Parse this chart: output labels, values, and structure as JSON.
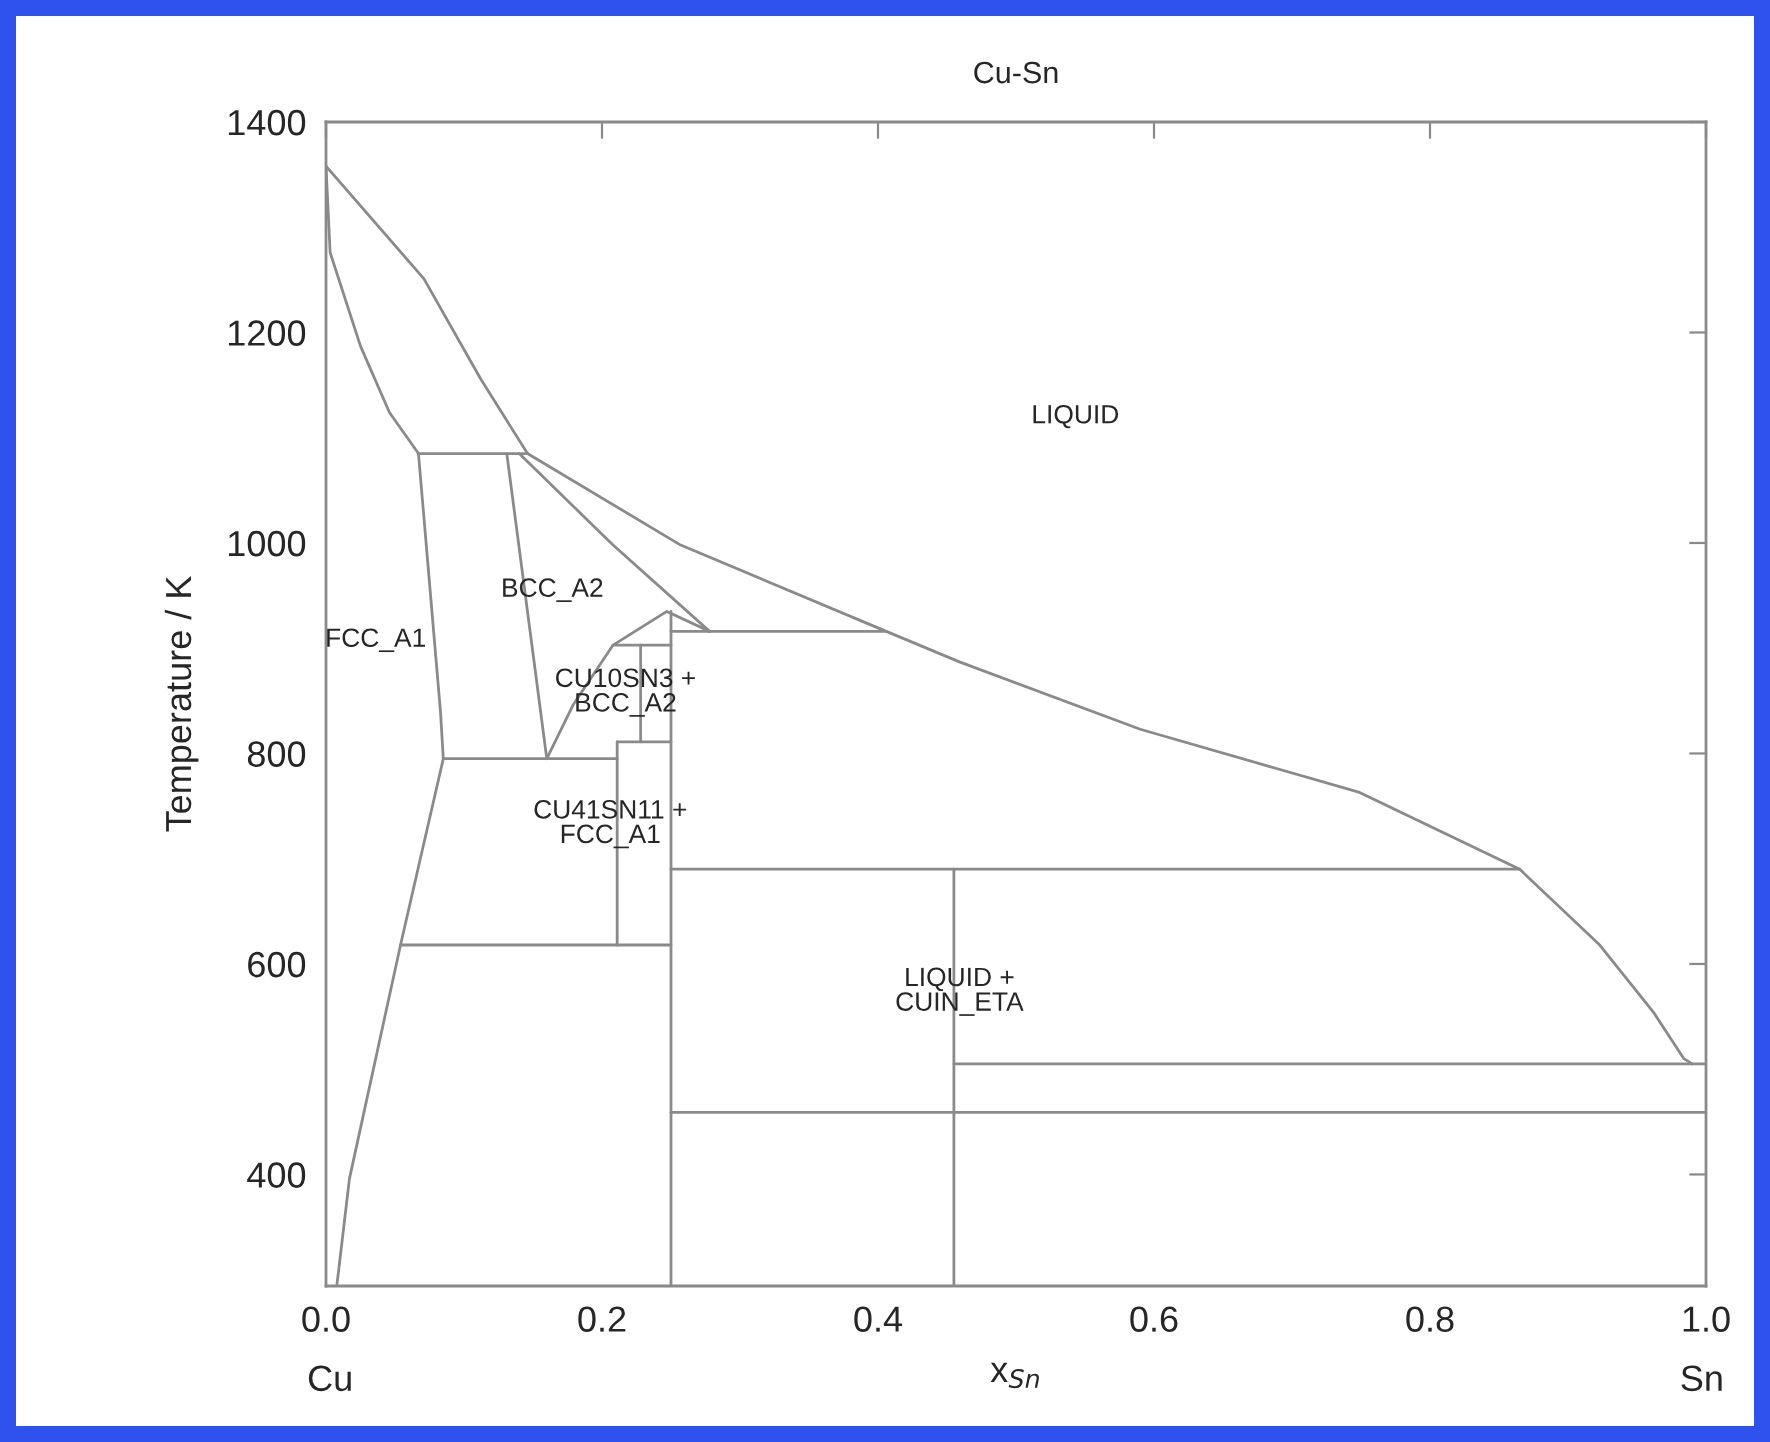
{
  "chart_data": {
    "type": "line",
    "title": "Cu-Sn",
    "xlabel": "x$_{Sn}$",
    "ylabel": "Temperature / K",
    "xlim": [
      0,
      1
    ],
    "ylim": [
      294,
      1400
    ],
    "xticks": [
      {
        "value": 0,
        "label": "0.0"
      },
      {
        "value": 0.2,
        "label": "0.2"
      },
      {
        "value": 0.4,
        "label": "0.4"
      },
      {
        "value": 0.6,
        "label": "0.6"
      },
      {
        "value": 0.8,
        "label": "0.8"
      },
      {
        "value": 1,
        "label": "1.0"
      }
    ],
    "yticks": [
      400,
      600,
      800,
      1000,
      1200,
      1400
    ],
    "grid": false,
    "legend": false,
    "series": [
      {
        "color": "#8a8a8a",
        "x": [
          0,
          0.071,
          0.112,
          0.146
        ],
        "values": [
          1358,
          1251,
          1156,
          1085
        ]
      },
      {
        "color": "#8a8a8a",
        "x": [
          0,
          0.003,
          0.025,
          0.046,
          0.067
        ],
        "values": [
          1358,
          1276,
          1187,
          1124,
          1085
        ]
      },
      {
        "color": "#8a8a8a",
        "x": [
          0.067,
          0.146
        ],
        "values": [
          1085,
          1085
        ]
      },
      {
        "color": "#8a8a8a",
        "x": [
          0.067,
          0.083,
          0.085,
          0.054,
          0.017,
          0.008
        ],
        "values": [
          1085,
          839,
          795,
          618,
          396,
          296
        ]
      },
      {
        "color": "#8a8a8a",
        "x": [
          0.131,
          0.16
        ],
        "values": [
          1085,
          795
        ]
      },
      {
        "color": "#8a8a8a",
        "x": [
          0.146,
          0.257,
          0.406,
          0.459,
          0.59,
          0.749,
          0.865,
          0.923,
          0.962,
          0.984,
          0.99
        ],
        "values": [
          1085,
          998,
          916,
          887,
          823,
          763,
          690,
          618,
          554,
          510,
          505
        ]
      },
      {
        "color": "#8a8a8a",
        "x": [
          0.14,
          0.208,
          0.278
        ],
        "values": [
          1085,
          998,
          916
        ]
      },
      {
        "color": "#8a8a8a",
        "x": [
          0.25,
          0.406
        ],
        "values": [
          916,
          916
        ]
      },
      {
        "color": "#8a8a8a",
        "x": [
          0.16,
          0.179,
          0.208,
          0.247,
          0.278
        ],
        "values": [
          795,
          846,
          903,
          935,
          916
        ]
      },
      {
        "color": "#8a8a8a",
        "x": [
          0.208,
          0.25
        ],
        "values": [
          903,
          903
        ]
      },
      {
        "color": "#8a8a8a",
        "x": [
          0.228,
          0.228
        ],
        "values": [
          903,
          811
        ]
      },
      {
        "color": "#8a8a8a",
        "x": [
          0.211,
          0.25
        ],
        "values": [
          811,
          811
        ]
      },
      {
        "color": "#8a8a8a",
        "x": [
          0.211,
          0.211
        ],
        "values": [
          811,
          618
        ]
      },
      {
        "color": "#8a8a8a",
        "x": [
          0.085,
          0.211
        ],
        "values": [
          795,
          795
        ]
      },
      {
        "color": "#8a8a8a",
        "x": [
          0.054,
          0.25
        ],
        "values": [
          618,
          618
        ]
      },
      {
        "color": "#8a8a8a",
        "x": [
          0.25,
          0.25
        ],
        "values": [
          935,
          294
        ]
      },
      {
        "color": "#8a8a8a",
        "x": [
          0.25,
          0.865
        ],
        "values": [
          690,
          690
        ]
      },
      {
        "color": "#8a8a8a",
        "x": [
          0.455,
          0.455
        ],
        "values": [
          690,
          294
        ]
      },
      {
        "color": "#8a8a8a",
        "x": [
          0.455,
          1
        ],
        "values": [
          505,
          505
        ]
      },
      {
        "color": "#8a8a8a",
        "x": [
          0.25,
          1
        ],
        "values": [
          459,
          459
        ]
      }
    ],
    "annotations": [
      "LIQUID",
      "BCC_A2",
      "FCC_A1",
      "CU10SN3 +\nBCC_A2",
      "CU41SN11 +\nFCC_A1",
      "LIQUID +\nCUIN_ETA",
      "Cu",
      "Sn"
    ]
  }
}
